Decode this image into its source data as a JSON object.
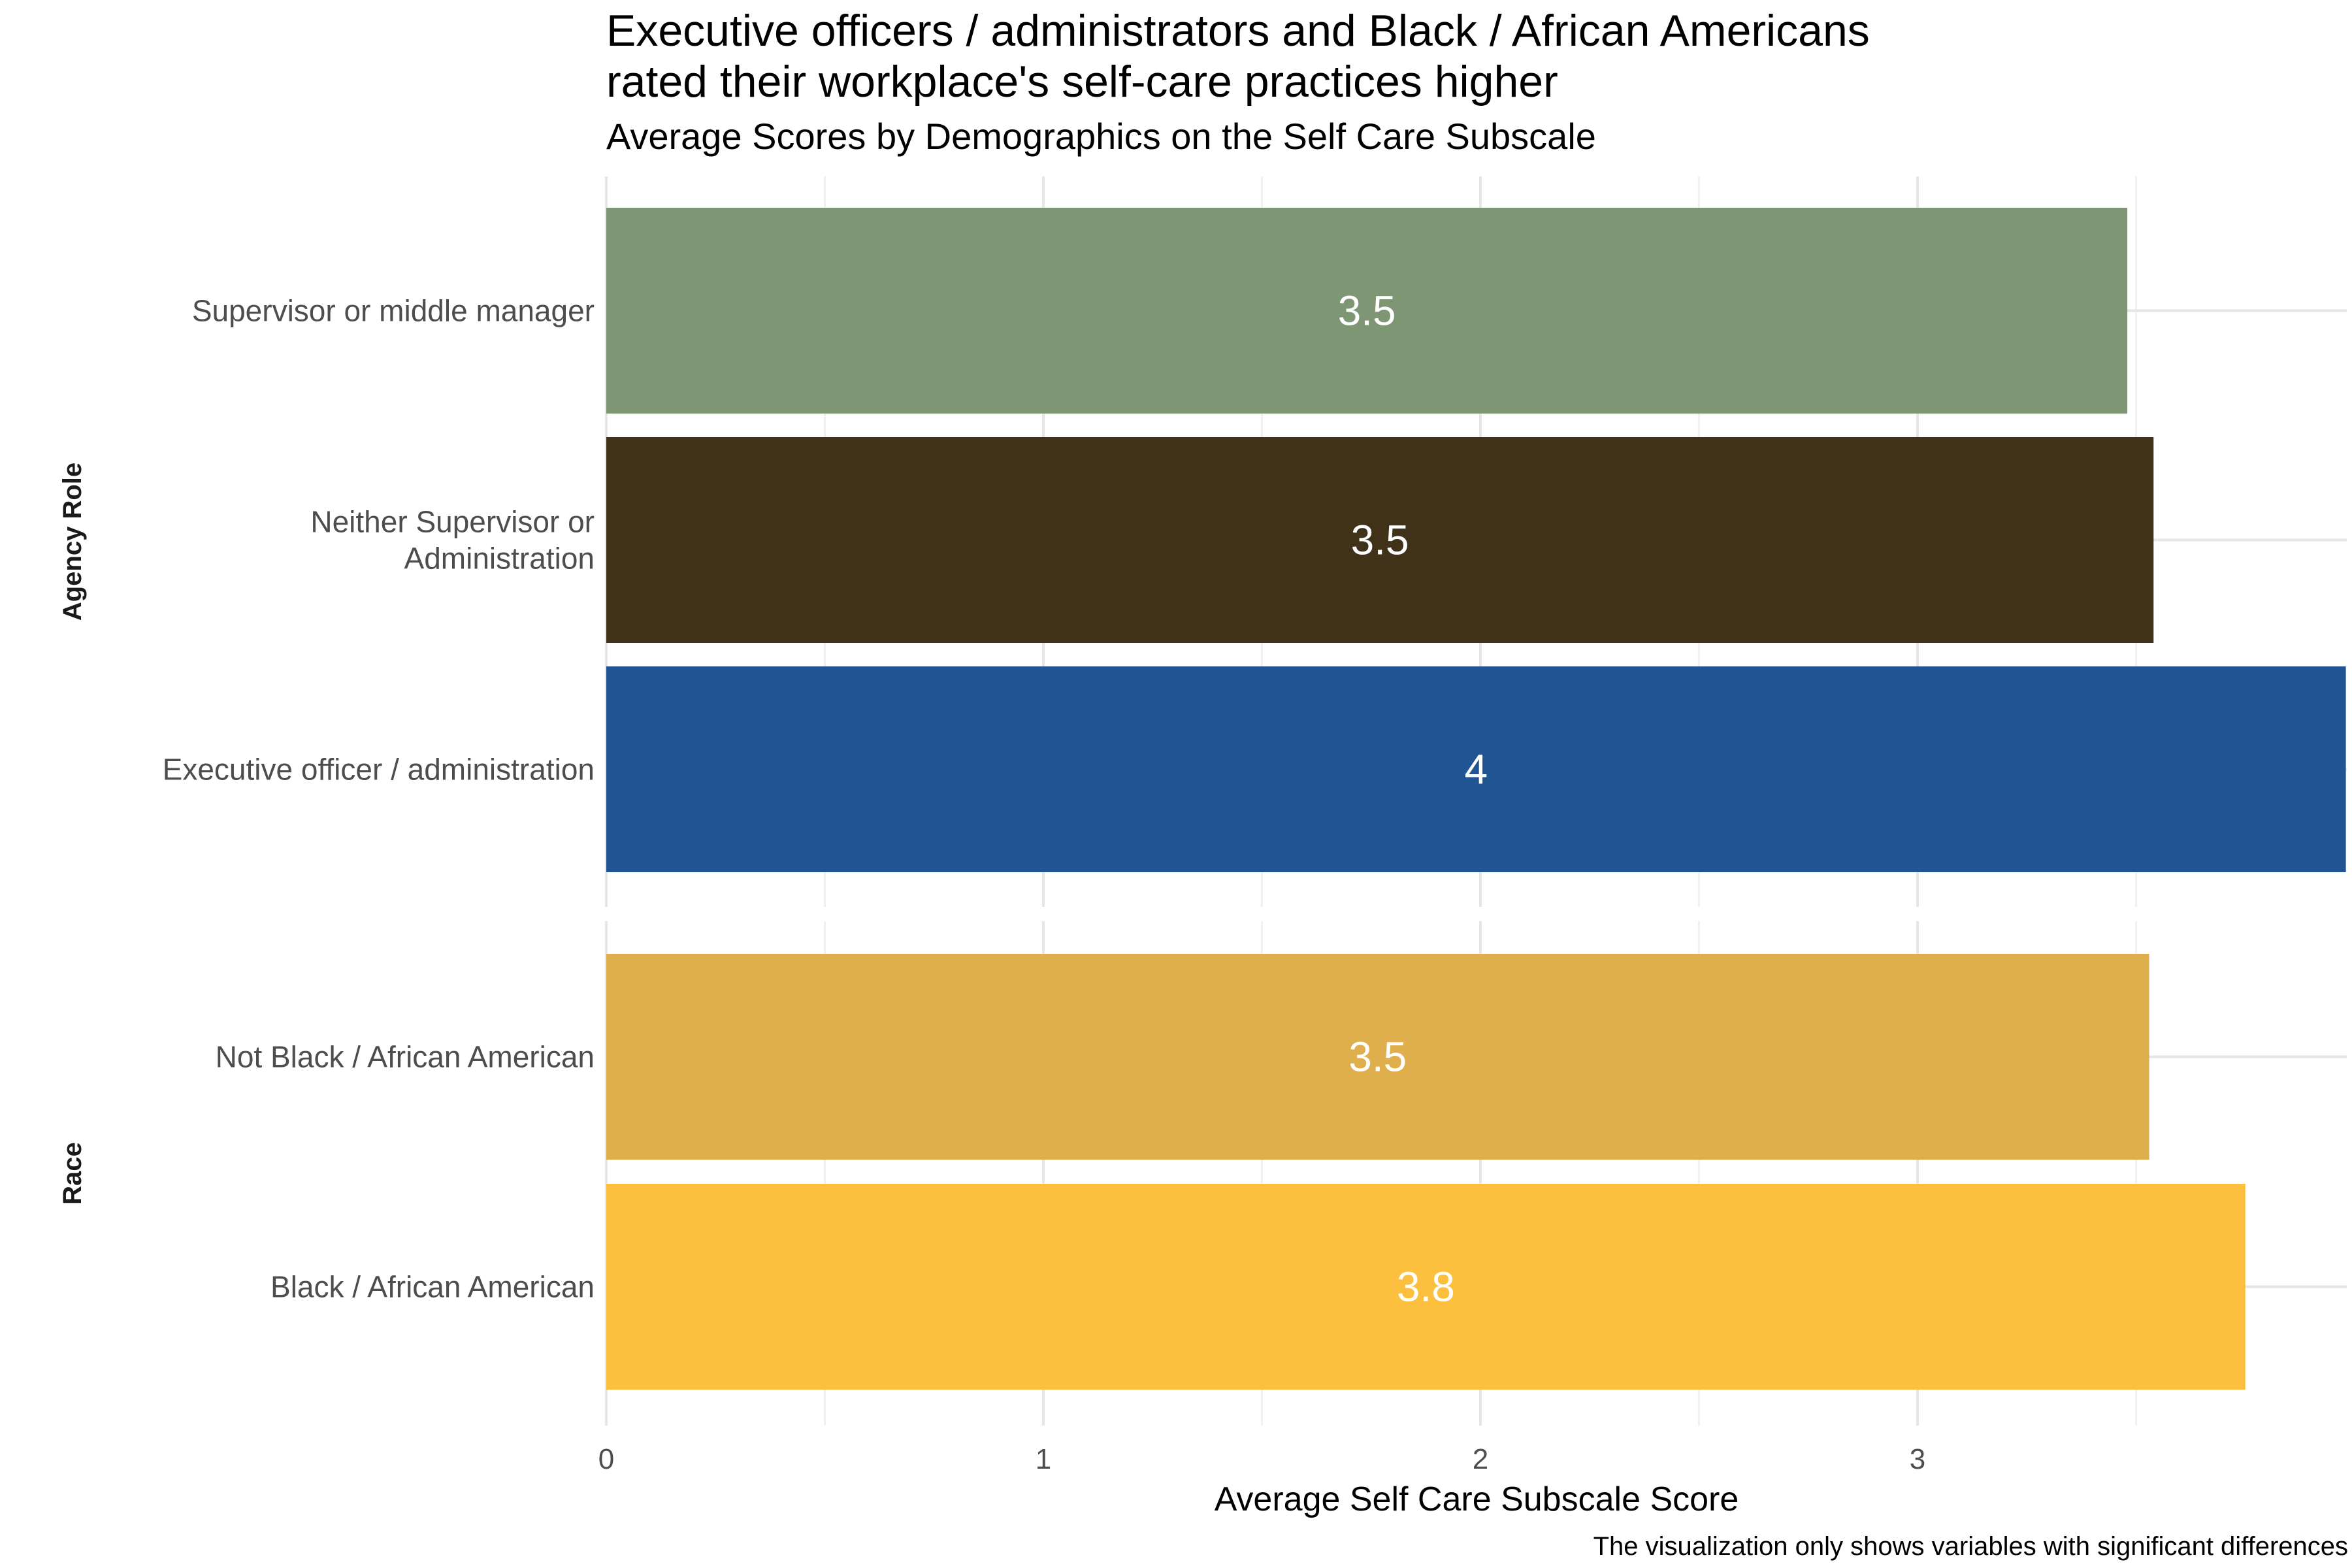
{
  "chart_data": {
    "type": "bar",
    "orientation": "horizontal",
    "title": "Executive officers / administrators and Black / African Americans\nrated their workplace's self-care practices higher",
    "title_lines": [
      "Executive officers / administrators and Black / African Americans",
      "rated their workplace's self-care practices higher"
    ],
    "subtitle": "Average Scores by Demographics on the Self Care Subscale",
    "xlabel": "Average Self Care Subscale Score",
    "caption": "The visualization only shows variables with significant differences",
    "xlim": [
      0,
      4
    ],
    "xticks": [
      0,
      1,
      2,
      3
    ],
    "grid": true,
    "facets": [
      {
        "label": "Agency Role",
        "bars": [
          {
            "category": "Supervisor or middle manager",
            "label_lines": [
              "Supervisor or middle manager"
            ],
            "value": 3.48,
            "value_label": "3.5",
            "color": "#7F9675"
          },
          {
            "category": "Neither Supervisor or Administration",
            "label_lines": [
              "Neither Supervisor or",
              "Administration"
            ],
            "value": 3.54,
            "value_label": "3.5",
            "color": "#3F3218"
          },
          {
            "category": "Executive officer / administration",
            "label_lines": [
              "Executive officer / administration"
            ],
            "value": 3.98,
            "value_label": "4",
            "color": "#215493"
          }
        ]
      },
      {
        "label": "Race",
        "bars": [
          {
            "category": "Not Black / African American",
            "label_lines": [
              "Not Black / African American"
            ],
            "value": 3.53,
            "value_label": "3.5",
            "color": "#DFAF4D"
          },
          {
            "category": "Black / African American",
            "label_lines": [
              "Black / African American"
            ],
            "value": 3.75,
            "value_label": "3.8",
            "color": "#FDBF3E"
          }
        ]
      }
    ]
  }
}
